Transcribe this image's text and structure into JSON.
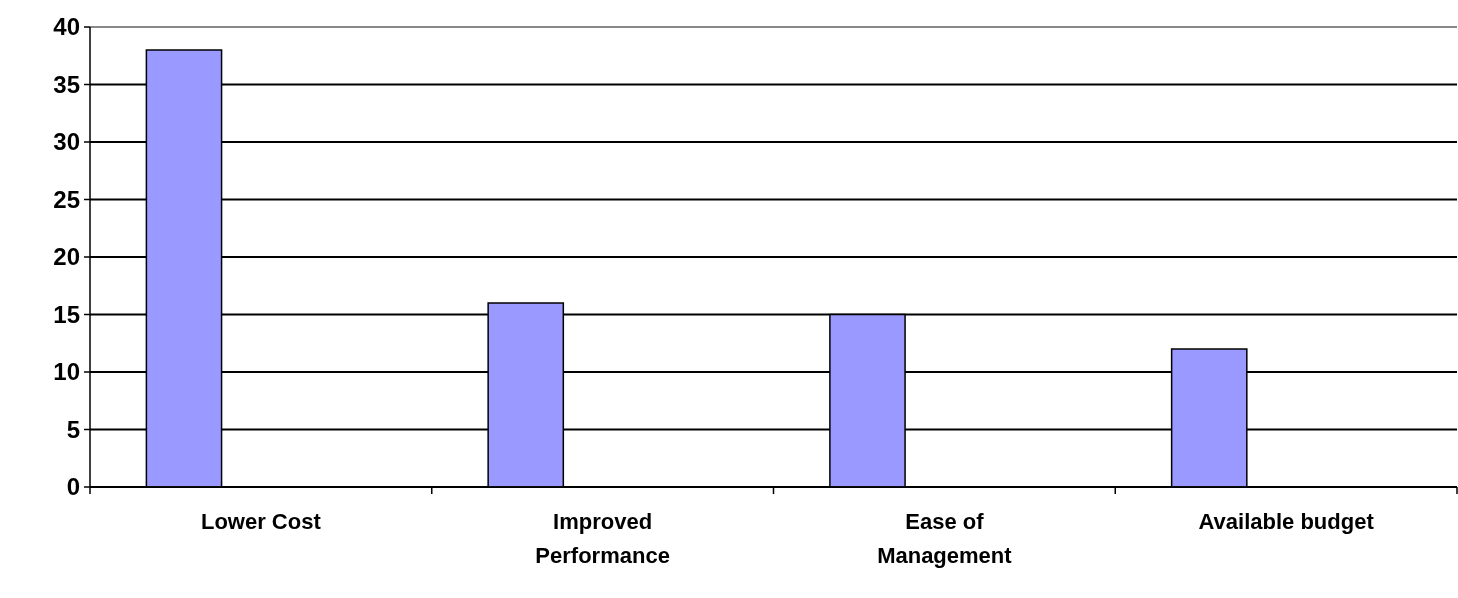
{
  "chart_data": {
    "type": "bar",
    "categories": [
      "Lower Cost",
      "Improved Performance",
      "Ease of Management",
      "Available budget"
    ],
    "values": [
      38,
      16,
      15,
      12
    ],
    "color": "#9999ff",
    "ylim": [
      0,
      40
    ],
    "yticks": [
      0,
      5,
      10,
      15,
      20,
      25,
      30,
      35,
      40
    ],
    "grid": "y"
  }
}
